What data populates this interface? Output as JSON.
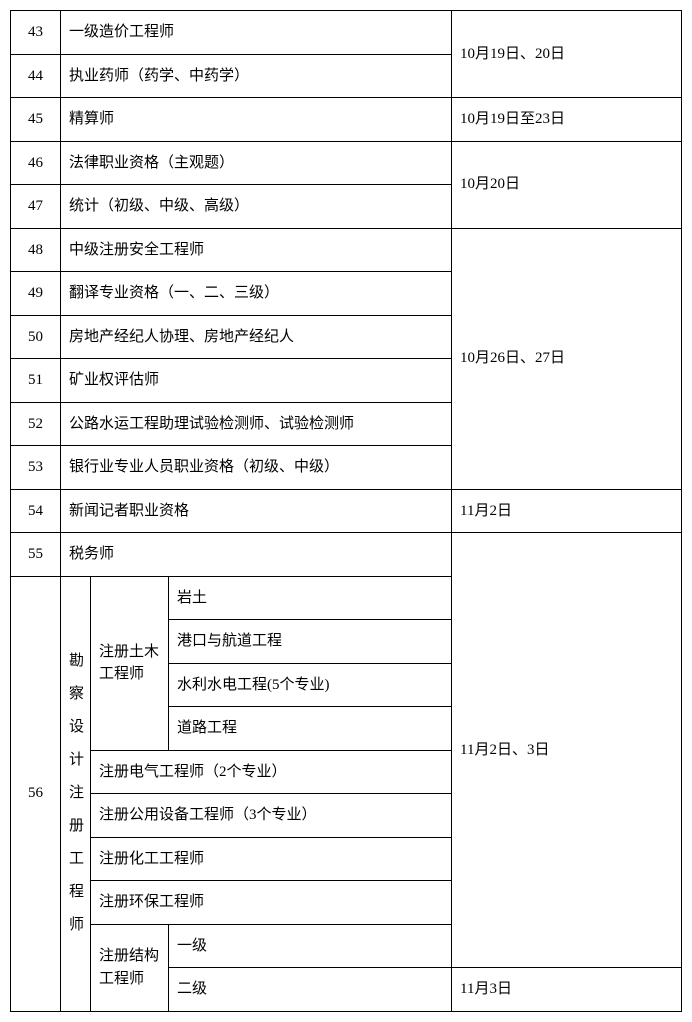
{
  "rows": {
    "r43": {
      "num": "43",
      "name": "一级造价工程师"
    },
    "r44": {
      "num": "44",
      "name": "执业药师（药学、中药学）"
    },
    "date_43_44": "10月19日、20日",
    "r45": {
      "num": "45",
      "name": "精算师",
      "date": "10月19日至23日"
    },
    "r46": {
      "num": "46",
      "name": "法律职业资格（主观题）"
    },
    "r47": {
      "num": "47",
      "name": "统计（初级、中级、高级）"
    },
    "date_46_47": "10月20日",
    "r48": {
      "num": "48",
      "name": "中级注册安全工程师"
    },
    "r49": {
      "num": "49",
      "name": "翻译专业资格（一、二、三级）"
    },
    "r50": {
      "num": "50",
      "name": "房地产经纪人协理、房地产经纪人"
    },
    "r51": {
      "num": "51",
      "name": "矿业权评估师"
    },
    "r52": {
      "num": "52",
      "name": "公路水运工程助理试验检测师、试验检测师"
    },
    "r53": {
      "num": "53",
      "name": "银行业专业人员职业资格（初级、中级）"
    },
    "date_48_53": "10月26日、27日",
    "r54": {
      "num": "54",
      "name": "新闻记者职业资格",
      "date": "11月2日"
    },
    "r55": {
      "num": "55",
      "name": "税务师"
    },
    "r56": {
      "num": "56",
      "category": "勘察设计注册工程师",
      "civil": {
        "label": "注册土木工程师",
        "s1": "岩土",
        "s2": "港口与航道工程",
        "s3": "水利水电工程(5个专业)",
        "s4": "道路工程"
      },
      "elec": "注册电气工程师（2个专业）",
      "util": "注册公用设备工程师（3个专业）",
      "chem": "注册化工工程师",
      "env": "注册环保工程师",
      "struct": {
        "label": "注册结构工程师",
        "l1": "一级",
        "l2": "二级"
      }
    },
    "date_55_56a": "11月2日、3日",
    "date_56b": "11月3日"
  }
}
